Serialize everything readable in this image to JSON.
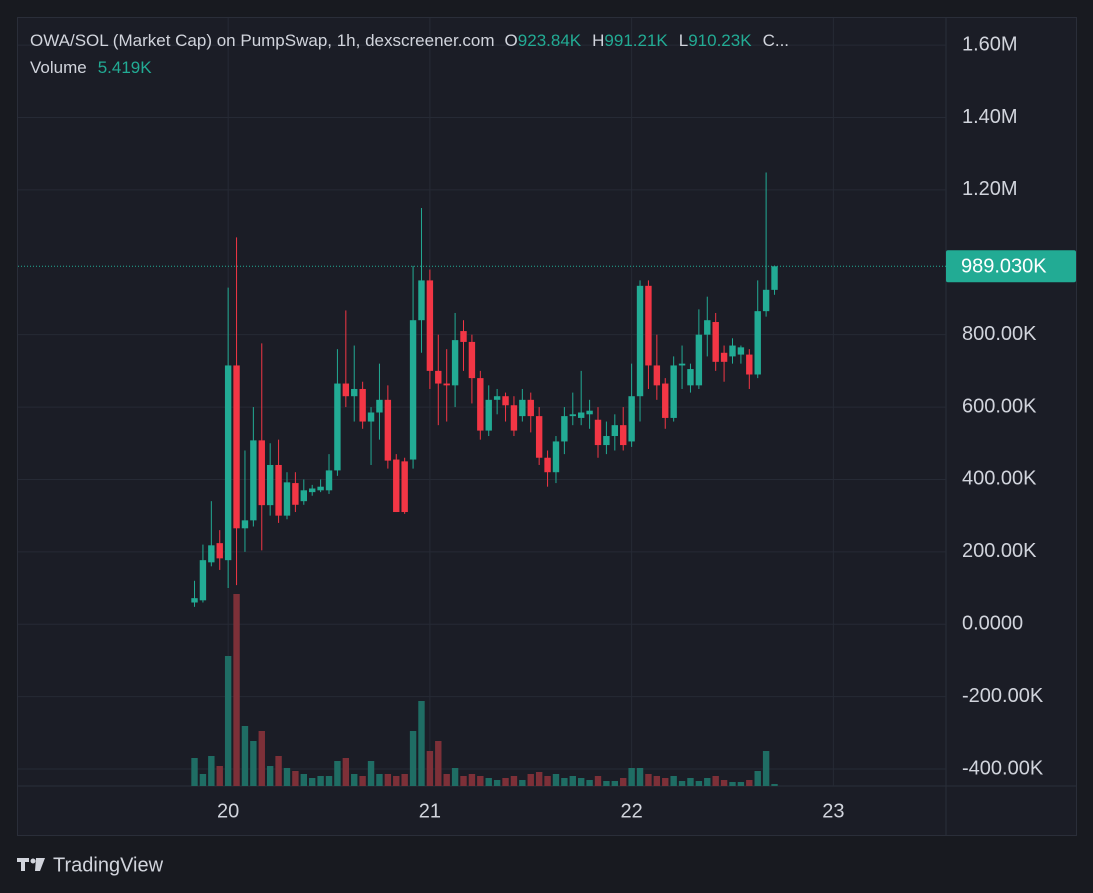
{
  "chart_data": {
    "type": "candlestick",
    "title": "OWA/SOL (Market Cap) on PumpSwap, 1h, dexscreener.com",
    "header_labels": {
      "open": {
        "key": "O",
        "label": "923.84K"
      },
      "high": {
        "key": "H",
        "label": "991.21K"
      },
      "low": {
        "key": "L",
        "label": "910.23K"
      },
      "close": {
        "key": "C..."
      }
    },
    "volume_label": "Volume",
    "volume_value_label": "5.419K",
    "last_price_label": "989.030K",
    "up_color": "#22ab94",
    "down_color": "#f23645",
    "volume_up_color": "#1f6d64",
    "volume_down_color": "#7d3038",
    "grid": true,
    "ylim": [
      -447000,
      1675000
    ],
    "yticks": [
      {
        "value": 1600000,
        "label": "1.60M"
      },
      {
        "value": 1400000,
        "label": "1.40M"
      },
      {
        "value": 1200000,
        "label": "1.20M"
      },
      {
        "value": 800000,
        "label": "800.00K"
      },
      {
        "value": 600000,
        "label": "600.00K"
      },
      {
        "value": 400000,
        "label": "400.00K"
      },
      {
        "value": 200000,
        "label": "200.00K"
      },
      {
        "value": 0,
        "label": "0.0000"
      },
      {
        "value": -200000,
        "label": "-200.00K"
      },
      {
        "value": -400000,
        "label": "-400.00K"
      }
    ],
    "xlim": [
      -21,
      89.4
    ],
    "xticks": [
      {
        "value": 4,
        "label": "20"
      },
      {
        "value": 28,
        "label": "21"
      },
      {
        "value": 52,
        "label": "22"
      },
      {
        "value": 76,
        "label": "23"
      }
    ],
    "open": [
      60000,
      66000,
      171000,
      224000,
      177000,
      715000,
      265000,
      287000,
      508000,
      329000,
      440000,
      300000,
      390000,
      340000,
      365000,
      370000,
      370000,
      425000,
      665000,
      630000,
      650000,
      560000,
      585000,
      620000,
      455000,
      450000,
      455000,
      840000,
      950000,
      700000,
      665000,
      660000,
      810000,
      780000,
      680000,
      535000,
      620000,
      630000,
      605000,
      575000,
      620000,
      575000,
      460000,
      420000,
      505000,
      575000,
      570000,
      580000,
      565000,
      495000,
      520000,
      550000,
      505000,
      630000,
      935000,
      715000,
      665000,
      570000,
      715000,
      660000,
      660000,
      800000,
      835000,
      750000,
      740000,
      745000,
      745000,
      690000,
      865000,
      923840
    ],
    "high": [
      120000,
      220000,
      340000,
      260000,
      930000,
      1069000,
      480000,
      600000,
      776000,
      500000,
      510000,
      420000,
      420000,
      400000,
      385000,
      400000,
      470000,
      760000,
      867000,
      770000,
      670000,
      600000,
      720000,
      660000,
      470000,
      460000,
      990000,
      1150000,
      980000,
      800000,
      760000,
      860000,
      840000,
      800000,
      700000,
      660000,
      650000,
      640000,
      630000,
      650000,
      640000,
      600000,
      480000,
      520000,
      600000,
      640000,
      700000,
      620000,
      600000,
      560000,
      580000,
      600000,
      720000,
      950000,
      950000,
      800000,
      680000,
      740000,
      770000,
      720000,
      870000,
      905000,
      860000,
      770000,
      790000,
      770000,
      760000,
      950000,
      1248000,
      991210
    ],
    "low": [
      48000,
      60000,
      160000,
      150000,
      100000,
      108000,
      200000,
      270000,
      204000,
      300000,
      280000,
      290000,
      310000,
      330000,
      355000,
      365000,
      360000,
      410000,
      600000,
      560000,
      540000,
      440000,
      510000,
      430000,
      310000,
      305000,
      430000,
      750000,
      650000,
      550000,
      560000,
      600000,
      700000,
      610000,
      510000,
      520000,
      580000,
      560000,
      520000,
      560000,
      530000,
      440000,
      380000,
      390000,
      470000,
      550000,
      550000,
      540000,
      460000,
      470000,
      480000,
      480000,
      490000,
      560000,
      650000,
      620000,
      540000,
      560000,
      650000,
      640000,
      650000,
      740000,
      700000,
      670000,
      720000,
      720000,
      650000,
      680000,
      850000,
      910230
    ],
    "close": [
      72000,
      177000,
      218000,
      182000,
      715000,
      265000,
      287000,
      508000,
      329000,
      440000,
      300000,
      392000,
      330000,
      370000,
      375000,
      380000,
      425000,
      665000,
      630000,
      650000,
      560000,
      585000,
      620000,
      452000,
      310000,
      310000,
      840000,
      950000,
      700000,
      665000,
      660000,
      785000,
      780000,
      680000,
      535000,
      620000,
      630000,
      605000,
      535000,
      620000,
      575000,
      460000,
      420000,
      505000,
      575000,
      580000,
      585000,
      590000,
      495000,
      520000,
      550000,
      495000,
      630000,
      935000,
      715000,
      660000,
      570000,
      715000,
      720000,
      705000,
      800000,
      840000,
      725000,
      725000,
      770000,
      765000,
      690000,
      865000,
      924000,
      989030
    ],
    "volume": [
      75880,
      32520,
      81300,
      54200,
      352300,
      520320,
      162600,
      121950,
      149050,
      54200,
      81300,
      48780,
      40650,
      32520,
      21680,
      27100,
      27100,
      67750,
      75880,
      32520,
      27100,
      67750,
      32520,
      32520,
      27100,
      32520,
      149050,
      230350,
      94850,
      121950,
      32520,
      48780,
      27100,
      32520,
      27100,
      21680,
      16260,
      21680,
      27100,
      16260,
      32520,
      37940,
      27100,
      32520,
      21680,
      27100,
      21680,
      16260,
      27100,
      13550,
      13550,
      21680,
      48780,
      48780,
      32520,
      27100,
      21680,
      27100,
      13550,
      21680,
      13550,
      21680,
      27100,
      16260,
      10840,
      10840,
      16260,
      40650,
      94850,
      5419
    ],
    "brand": "TradingView"
  }
}
